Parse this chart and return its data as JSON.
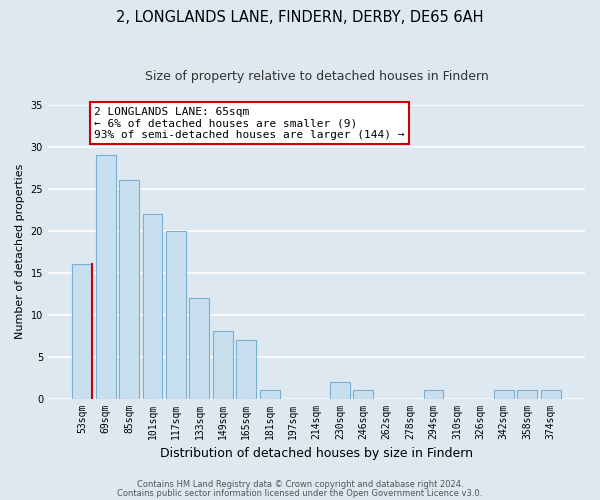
{
  "title": "2, LONGLANDS LANE, FINDERN, DERBY, DE65 6AH",
  "subtitle": "Size of property relative to detached houses in Findern",
  "xlabel": "Distribution of detached houses by size in Findern",
  "ylabel": "Number of detached properties",
  "bar_labels": [
    "53sqm",
    "69sqm",
    "85sqm",
    "101sqm",
    "117sqm",
    "133sqm",
    "149sqm",
    "165sqm",
    "181sqm",
    "197sqm",
    "214sqm",
    "230sqm",
    "246sqm",
    "262sqm",
    "278sqm",
    "294sqm",
    "310sqm",
    "326sqm",
    "342sqm",
    "358sqm",
    "374sqm"
  ],
  "bar_values": [
    16,
    29,
    26,
    22,
    20,
    12,
    8,
    7,
    1,
    0,
    0,
    2,
    1,
    0,
    0,
    1,
    0,
    0,
    1,
    1,
    1
  ],
  "bar_color": "#c8dff0",
  "bar_edge_color": "#7aafd4",
  "highlight_left_edge_color": "#cc0000",
  "ylim": [
    0,
    35
  ],
  "yticks": [
    0,
    5,
    10,
    15,
    20,
    25,
    30,
    35
  ],
  "annotation_title": "2 LONGLANDS LANE: 65sqm",
  "annotation_line1": "← 6% of detached houses are smaller (9)",
  "annotation_line2": "93% of semi-detached houses are larger (144) →",
  "annotation_box_color": "#ffffff",
  "annotation_box_edge": "#cc0000",
  "footer1": "Contains HM Land Registry data © Crown copyright and database right 2024.",
  "footer2": "Contains public sector information licensed under the Open Government Licence v3.0.",
  "background_color": "#dde8f0",
  "plot_bg_color": "#dde8f0",
  "grid_color": "#ffffff",
  "title_fontsize": 10.5,
  "subtitle_fontsize": 9,
  "xlabel_fontsize": 9,
  "ylabel_fontsize": 8,
  "tick_fontsize": 7,
  "footer_fontsize": 6,
  "annotation_fontsize": 8
}
